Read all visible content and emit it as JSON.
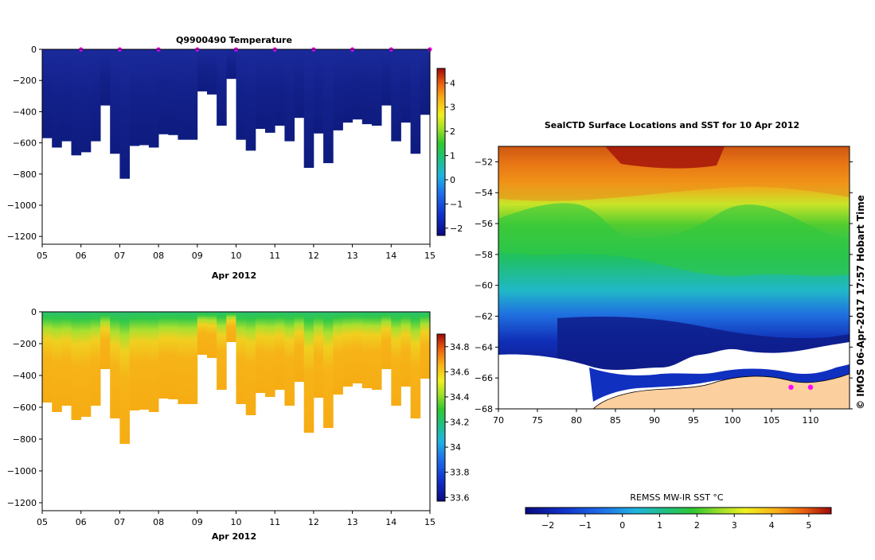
{
  "chart_data": [
    {
      "type": "heatmap",
      "title": "Q9900490  Temperature",
      "variable": "temperature",
      "xlabel": "Apr 2012",
      "ylabel": "",
      "xlim": [
        5,
        15
      ],
      "ylim": [
        -1250,
        0
      ],
      "x_ticks": [
        "05",
        "06",
        "07",
        "08",
        "09",
        "10",
        "11",
        "12",
        "13",
        "14",
        "15"
      ],
      "y_ticks": [
        0,
        -200,
        -400,
        -600,
        -800,
        -1000,
        -1200
      ],
      "y_tick_labels": [
        "0",
        "−200",
        "−400",
        "−600",
        "−800",
        "−1000",
        "−1200"
      ],
      "colorbar": {
        "min": -2.3,
        "max": 4.6,
        "ticks": [
          4,
          3,
          2,
          1,
          0,
          -1,
          -2
        ],
        "tick_labels": [
          "4",
          "3",
          "2",
          "1",
          "0",
          "−1",
          "−2"
        ]
      },
      "surface_markers": [
        6,
        7,
        8,
        9,
        10,
        11,
        12,
        13,
        14,
        15
      ],
      "profiles": [
        {
          "day": 5.0,
          "max_depth": 570
        },
        {
          "day": 5.25,
          "max_depth": 630
        },
        {
          "day": 5.5,
          "max_depth": 590
        },
        {
          "day": 5.75,
          "max_depth": 680
        },
        {
          "day": 6.0,
          "max_depth": 660
        },
        {
          "day": 6.25,
          "max_depth": 590
        },
        {
          "day": 6.5,
          "max_depth": 360
        },
        {
          "day": 6.75,
          "max_depth": 670
        },
        {
          "day": 7.0,
          "max_depth": 830
        },
        {
          "day": 7.25,
          "max_depth": 620
        },
        {
          "day": 7.5,
          "max_depth": 615
        },
        {
          "day": 7.75,
          "max_depth": 630
        },
        {
          "day": 8.0,
          "max_depth": 545
        },
        {
          "day": 8.25,
          "max_depth": 550
        },
        {
          "day": 8.5,
          "max_depth": 580
        },
        {
          "day": 8.75,
          "max_depth": 580
        },
        {
          "day": 9.0,
          "max_depth": 270
        },
        {
          "day": 9.25,
          "max_depth": 290
        },
        {
          "day": 9.5,
          "max_depth": 490
        },
        {
          "day": 9.75,
          "max_depth": 190
        },
        {
          "day": 10.0,
          "max_depth": 580
        },
        {
          "day": 10.25,
          "max_depth": 650
        },
        {
          "day": 10.5,
          "max_depth": 510
        },
        {
          "day": 10.75,
          "max_depth": 535
        },
        {
          "day": 11.0,
          "max_depth": 490
        },
        {
          "day": 11.25,
          "max_depth": 590
        },
        {
          "day": 11.5,
          "max_depth": 440
        },
        {
          "day": 11.75,
          "max_depth": 760
        },
        {
          "day": 12.0,
          "max_depth": 540
        },
        {
          "day": 12.25,
          "max_depth": 730
        },
        {
          "day": 12.5,
          "max_depth": 520
        },
        {
          "day": 12.75,
          "max_depth": 470
        },
        {
          "day": 13.0,
          "max_depth": 450
        },
        {
          "day": 13.25,
          "max_depth": 480
        },
        {
          "day": 13.5,
          "max_depth": 490
        },
        {
          "day": 13.75,
          "max_depth": 360
        },
        {
          "day": 14.0,
          "max_depth": 590
        },
        {
          "day": 14.25,
          "max_depth": 470
        },
        {
          "day": 14.5,
          "max_depth": 670
        },
        {
          "day": 14.75,
          "max_depth": 420
        }
      ]
    },
    {
      "type": "heatmap",
      "title": "",
      "variable": "salinity",
      "xlabel": "Apr 2012",
      "ylabel": "",
      "xlim": [
        5,
        15
      ],
      "ylim": [
        -1250,
        0
      ],
      "x_ticks": [
        "05",
        "06",
        "07",
        "08",
        "09",
        "10",
        "11",
        "12",
        "13",
        "14",
        "15"
      ],
      "y_ticks": [
        0,
        -200,
        -400,
        -600,
        -800,
        -1000,
        -1200
      ],
      "y_tick_labels": [
        "0",
        "−200",
        "−400",
        "−600",
        "−800",
        "−1000",
        "−1200"
      ],
      "colorbar": {
        "min": 33.57,
        "max": 34.9,
        "ticks": [
          34.8,
          34.6,
          34.4,
          34.2,
          34,
          33.8,
          33.6
        ],
        "tick_labels": [
          "34.8",
          "34.6",
          "34.4",
          "34.2",
          "34",
          "33.8",
          "33.6"
        ]
      }
    },
    {
      "type": "heatmap",
      "title": "SealCTD Surface Locations and SST for 10 Apr 2012",
      "variable": "sea_surface_temperature",
      "xlabel": "",
      "ylabel": "",
      "xlim": [
        70,
        115
      ],
      "ylim": [
        -68,
        -51
      ],
      "x_ticks": [
        70,
        75,
        80,
        85,
        90,
        95,
        100,
        105,
        110
      ],
      "y_ticks": [
        -52,
        -54,
        -56,
        -58,
        -60,
        -62,
        -64,
        -66,
        -68
      ],
      "y_tick_labels": [
        "−52",
        "−54",
        "−56",
        "−58",
        "−60",
        "−62",
        "−64",
        "−66",
        "−68"
      ],
      "colorbar": {
        "label": "REMSS MW-IR SST °C",
        "min": -2.6,
        "max": 5.6,
        "ticks": [
          -2,
          -1,
          0,
          1,
          2,
          3,
          4,
          5
        ],
        "tick_labels": [
          "−2",
          "−1",
          "0",
          "1",
          "2",
          "3",
          "4",
          "5"
        ]
      },
      "seal_locations": [
        {
          "lon": 107.5,
          "lat": -66.6
        },
        {
          "lon": 110.0,
          "lat": -66.6
        }
      ]
    }
  ],
  "side_text": "©  IMOS 06-Apr-2017 17:57 Hobart Time",
  "colors": {
    "marker": "#ff00ff",
    "land": "#fccf9e",
    "axis": "#000000"
  }
}
